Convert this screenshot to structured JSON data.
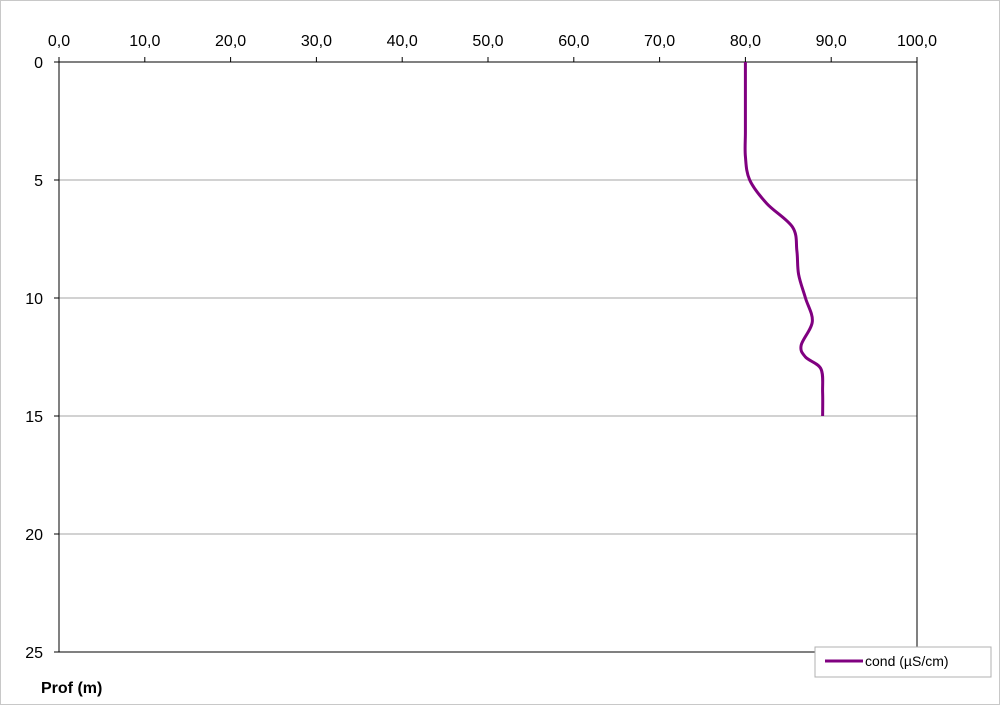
{
  "chart_data": {
    "type": "line",
    "x_ticks": [
      "0,0",
      "10,0",
      "20,0",
      "30,0",
      "40,0",
      "50,0",
      "60,0",
      "70,0",
      "80,0",
      "90,0",
      "100,0"
    ],
    "y_ticks": [
      "0",
      "5",
      "10",
      "15",
      "20",
      "25"
    ],
    "xlim": [
      0,
      100
    ],
    "ylim": [
      0,
      25
    ],
    "y_inverted": true,
    "x_axis_position": "top",
    "ylabel": "Prof (m)",
    "grid": "horizontal",
    "legend_position": "bottom-right",
    "series": [
      {
        "name": "cond (µS/cm)",
        "color": "#800080",
        "x": [
          80.0,
          80.0,
          80.0,
          80.0,
          80.0,
          80.5,
          82.5,
          85.5,
          86.0,
          86.2,
          87.0,
          87.8,
          86.5,
          87.0,
          88.8,
          89.0,
          89.0
        ],
        "y": [
          0,
          1,
          2,
          3,
          4,
          5,
          6,
          7,
          8,
          9,
          10,
          11,
          12,
          12.5,
          13,
          14,
          15
        ]
      }
    ]
  }
}
